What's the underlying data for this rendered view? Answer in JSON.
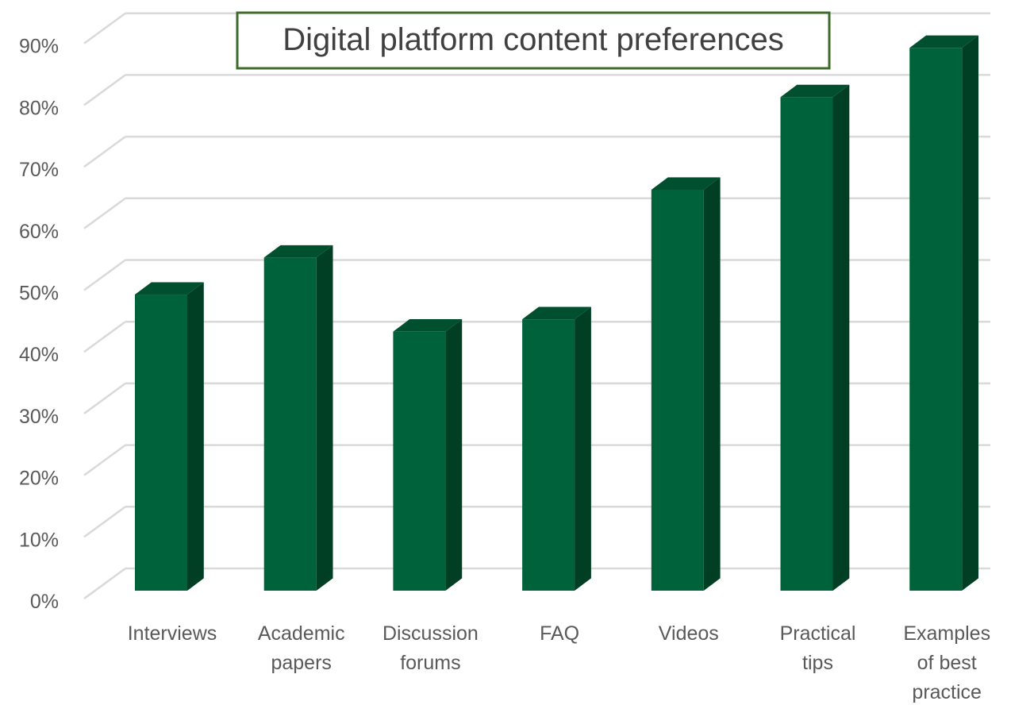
{
  "chart_data": {
    "type": "bar",
    "title": "Digital platform content preferences",
    "categories": [
      [
        "Interviews"
      ],
      [
        "Academic",
        "papers"
      ],
      [
        "Discussion",
        "forums"
      ],
      [
        "FAQ"
      ],
      [
        "Videos"
      ],
      [
        "Practical",
        "tips"
      ],
      [
        "Examples",
        "of best",
        "practice"
      ]
    ],
    "values": [
      48,
      54,
      42,
      44,
      65,
      80,
      88
    ],
    "ylim": [
      0,
      90
    ],
    "yticks": [
      "0%",
      "10%",
      "20%",
      "30%",
      "40%",
      "50%",
      "60%",
      "70%",
      "80%",
      "90%"
    ],
    "xlabel": "",
    "ylabel": "",
    "grid": true,
    "legend": "none",
    "colors": {
      "bar_front": "#00623A",
      "bar_side": "#003F23",
      "bar_top": "#00502F",
      "grid": "#D9D9D9",
      "title_border": "#3F6B2A"
    }
  }
}
